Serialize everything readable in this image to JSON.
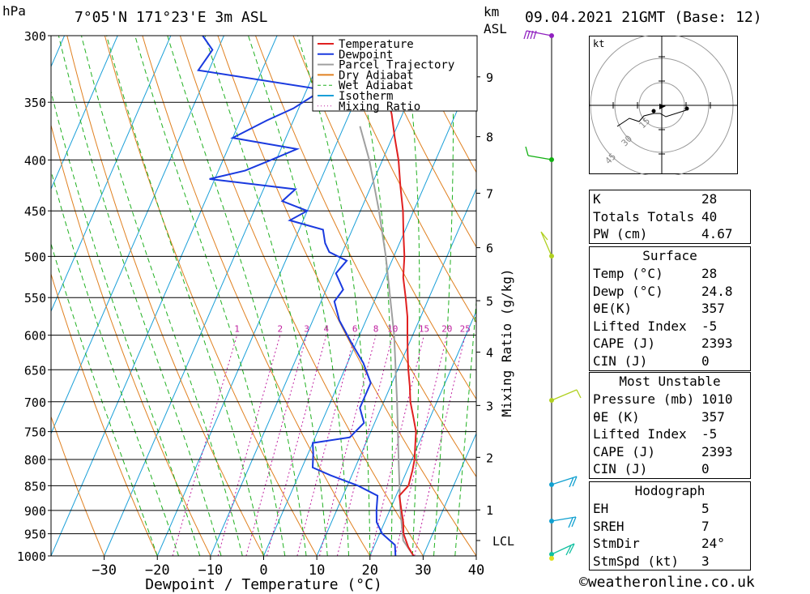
{
  "header": {
    "pressure_unit": "hPa",
    "location": "7°05'N  171°23'E  3m  ASL",
    "height_unit_1": "km",
    "height_unit_2": "ASL",
    "datetime": "09.04.2021  21GMT  (Base: 12)"
  },
  "chart_data": {
    "type": "skew-t",
    "xlabel": "Dewpoint / Temperature (°C)",
    "ylabel_left": "hPa",
    "ylabel_right": "Mixing Ratio (g/kg)",
    "x_ticks": [
      -30,
      -20,
      -10,
      0,
      10,
      20,
      30,
      40
    ],
    "pressure_levels": [
      300,
      350,
      400,
      450,
      500,
      550,
      600,
      650,
      700,
      750,
      800,
      850,
      900,
      950,
      1000
    ],
    "height_km_labels": [
      {
        "km": "1",
        "p": 899
      },
      {
        "km": "2",
        "p": 796
      },
      {
        "km": "3",
        "p": 706
      },
      {
        "km": "4",
        "p": 624
      },
      {
        "km": "5",
        "p": 554
      },
      {
        "km": "6",
        "p": 490
      },
      {
        "km": "7",
        "p": 432
      },
      {
        "km": "8",
        "p": 379
      },
      {
        "km": "9",
        "p": 330
      },
      {
        "km": "LCL",
        "p": 965
      }
    ],
    "mixing_ratio_labels": [
      "1",
      "2",
      "3",
      "4",
      "6",
      "8",
      "10",
      "15",
      "20",
      "25"
    ],
    "mixing_ratio_values": [
      1,
      2,
      3,
      4,
      6,
      8,
      10,
      15,
      20,
      25
    ],
    "legend": [
      {
        "name": "Temperature",
        "color": "#e02020",
        "style": "solid"
      },
      {
        "name": "Dewpoint",
        "color": "#1a3adf",
        "style": "solid"
      },
      {
        "name": "Parcel Trajectory",
        "color": "#a0a0a0",
        "style": "solid"
      },
      {
        "name": "Dry Adiabat",
        "color": "#e08020",
        "style": "solid"
      },
      {
        "name": "Wet Adiabat",
        "color": "#20b020",
        "style": "dashed"
      },
      {
        "name": "Isotherm",
        "color": "#1a9fd8",
        "style": "solid"
      },
      {
        "name": "Mixing Ratio",
        "color": "#c020a0",
        "style": "dotted"
      }
    ],
    "temperature": [
      {
        "p": 1000,
        "t": 28.2
      },
      {
        "p": 980,
        "t": 26.5
      },
      {
        "p": 950,
        "t": 24.5
      },
      {
        "p": 925,
        "t": 23.5
      },
      {
        "p": 900,
        "t": 22.2
      },
      {
        "p": 870,
        "t": 20.6
      },
      {
        "p": 850,
        "t": 21.5
      },
      {
        "p": 820,
        "t": 21.0
      },
      {
        "p": 800,
        "t": 20.5
      },
      {
        "p": 775,
        "t": 19.5
      },
      {
        "p": 750,
        "t": 18.5
      },
      {
        "p": 725,
        "t": 16.8
      },
      {
        "p": 700,
        "t": 15.0
      },
      {
        "p": 675,
        "t": 13.6
      },
      {
        "p": 650,
        "t": 12.0
      },
      {
        "p": 625,
        "t": 10.5
      },
      {
        "p": 600,
        "t": 9.0
      },
      {
        "p": 575,
        "t": 7.5
      },
      {
        "p": 550,
        "t": 5.6
      },
      {
        "p": 525,
        "t": 3.5
      },
      {
        "p": 500,
        "t": 2.0
      },
      {
        "p": 475,
        "t": 0.0
      },
      {
        "p": 450,
        "t": -2.0
      },
      {
        "p": 425,
        "t": -4.5
      },
      {
        "p": 400,
        "t": -7.0
      },
      {
        "p": 380,
        "t": -9.5
      },
      {
        "p": 360,
        "t": -12.0
      },
      {
        "p": 350,
        "t": -13.5
      }
    ],
    "dewpoint": [
      {
        "p": 1000,
        "t": 24.8
      },
      {
        "p": 975,
        "t": 23.8
      },
      {
        "p": 950,
        "t": 20.5
      },
      {
        "p": 925,
        "t": 18.5
      },
      {
        "p": 900,
        "t": 17.5
      },
      {
        "p": 870,
        "t": 16.5
      },
      {
        "p": 850,
        "t": 12.0
      },
      {
        "p": 830,
        "t": 6.0
      },
      {
        "p": 815,
        "t": 2.0
      },
      {
        "p": 790,
        "t": 1.0
      },
      {
        "p": 770,
        "t": 0.0
      },
      {
        "p": 760,
        "t": 6.5
      },
      {
        "p": 735,
        "t": 8.0
      },
      {
        "p": 710,
        "t": 6.0
      },
      {
        "p": 690,
        "t": 6.0
      },
      {
        "p": 670,
        "t": 6.0
      },
      {
        "p": 640,
        "t": 3.0
      },
      {
        "p": 610,
        "t": -1.0
      },
      {
        "p": 580,
        "t": -5.0
      },
      {
        "p": 555,
        "t": -7.5
      },
      {
        "p": 540,
        "t": -6.8
      },
      {
        "p": 520,
        "t": -9.5
      },
      {
        "p": 505,
        "t": -8.5
      },
      {
        "p": 495,
        "t": -12.5
      },
      {
        "p": 485,
        "t": -14.0
      },
      {
        "p": 470,
        "t": -15.5
      },
      {
        "p": 460,
        "t": -22.5
      },
      {
        "p": 450,
        "t": -20.0
      },
      {
        "p": 440,
        "t": -25.5
      },
      {
        "p": 428,
        "t": -24.0
      },
      {
        "p": 418,
        "t": -41.0
      },
      {
        "p": 410,
        "t": -35.0
      },
      {
        "p": 400,
        "t": -31.0
      },
      {
        "p": 390,
        "t": -27.0
      },
      {
        "p": 380,
        "t": -40.0
      },
      {
        "p": 365,
        "t": -35.0
      },
      {
        "p": 355,
        "t": -31.0
      },
      {
        "p": 340,
        "t": -27.0
      },
      {
        "p": 325,
        "t": -52.0
      },
      {
        "p": 310,
        "t": -51.0
      },
      {
        "p": 300,
        "t": -54.0
      }
    ],
    "parcel": [
      {
        "p": 1000,
        "t": 28.2
      },
      {
        "p": 965,
        "t": 25.0
      },
      {
        "p": 900,
        "t": 22.0
      },
      {
        "p": 800,
        "t": 17.5
      },
      {
        "p": 700,
        "t": 12.5
      },
      {
        "p": 600,
        "t": 6.5
      },
      {
        "p": 500,
        "t": -1.5
      },
      {
        "p": 450,
        "t": -6.5
      },
      {
        "p": 400,
        "t": -12.5
      },
      {
        "p": 370,
        "t": -17.0
      }
    ]
  },
  "hodograph": {
    "unit": "kt",
    "ring_labels": [
      "15",
      "30",
      "45"
    ]
  },
  "stability": {
    "rows": [
      {
        "label": "K",
        "value": "28"
      },
      {
        "label": "Totals Totals",
        "value": "40"
      },
      {
        "label": "PW (cm)",
        "value": "4.67"
      }
    ]
  },
  "surface": {
    "title": "Surface",
    "rows": [
      {
        "label": "Temp (°C)",
        "value": "28"
      },
      {
        "label": "Dewp (°C)",
        "value": "24.8"
      },
      {
        "label": "θE(K)",
        "value": "357"
      },
      {
        "label": "Lifted Index",
        "value": "-5"
      },
      {
        "label": "CAPE (J)",
        "value": "2393"
      },
      {
        "label": "CIN (J)",
        "value": "0"
      }
    ]
  },
  "most_unstable": {
    "title": "Most Unstable",
    "rows": [
      {
        "label": "Pressure (mb)",
        "value": "1010"
      },
      {
        "label": "θE (K)",
        "value": "357"
      },
      {
        "label": "Lifted Index",
        "value": "-5"
      },
      {
        "label": "CAPE (J)",
        "value": "2393"
      },
      {
        "label": "CIN (J)",
        "value": "0"
      }
    ]
  },
  "hodograph_table": {
    "title": "Hodograph",
    "rows": [
      {
        "label": "EH",
        "value": "5"
      },
      {
        "label": "SREH",
        "value": "7"
      },
      {
        "label": "StmDir",
        "value": "24°"
      },
      {
        "label": "StmSpd (kt)",
        "value": "3"
      }
    ]
  },
  "footer": {
    "copyright": "©weatheronline.co.uk"
  }
}
